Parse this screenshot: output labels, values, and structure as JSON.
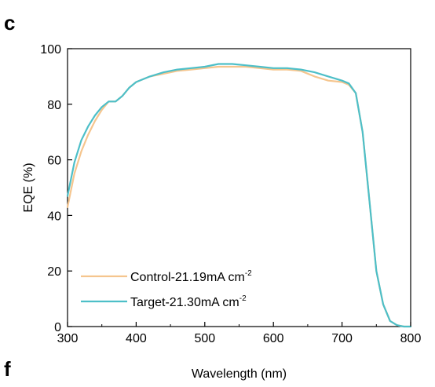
{
  "panel_labels": {
    "top": "c",
    "bottom": "f"
  },
  "colors": {
    "control": "#F5C58E",
    "target": "#4DBFC8",
    "axis": "#000000"
  },
  "chart_data": {
    "type": "line",
    "xlabel": "Wavelength (nm)",
    "ylabel": "EQE (%)",
    "xlim": [
      300,
      800
    ],
    "ylim": [
      0,
      100
    ],
    "xticks": [
      "300",
      "400",
      "500",
      "600",
      "700",
      "800"
    ],
    "yticks": [
      "0",
      "20",
      "40",
      "60",
      "80",
      "100"
    ],
    "legend_position": "bottom-left",
    "grid": false,
    "series": [
      {
        "name": "Control-21.19mA cm",
        "name_sup": "-2",
        "color": "#F5C58E",
        "x": [
          300,
          310,
          320,
          330,
          340,
          350,
          360,
          370,
          380,
          390,
          400,
          420,
          440,
          460,
          480,
          500,
          520,
          540,
          560,
          580,
          600,
          620,
          640,
          660,
          680,
          700,
          710,
          720,
          730,
          740,
          750,
          760,
          770,
          780,
          790,
          800
        ],
        "y": [
          43,
          55,
          63,
          69,
          74,
          78,
          81,
          81,
          83,
          86,
          88,
          90,
          91,
          92,
          92.5,
          93,
          93.5,
          93.5,
          93.5,
          93,
          92.5,
          92.5,
          92,
          90,
          88.5,
          88,
          87,
          84,
          70,
          45,
          20,
          8,
          2,
          0.5,
          0,
          0
        ]
      },
      {
        "name": "Target-21.30mA cm",
        "name_sup": "-2",
        "color": "#4DBFC8",
        "x": [
          300,
          310,
          320,
          330,
          340,
          350,
          360,
          370,
          380,
          390,
          400,
          420,
          440,
          460,
          480,
          500,
          520,
          540,
          560,
          580,
          600,
          620,
          640,
          660,
          680,
          700,
          710,
          720,
          730,
          740,
          750,
          760,
          770,
          780,
          790,
          800
        ],
        "y": [
          47,
          59,
          67,
          72,
          76,
          79,
          81,
          81,
          83,
          86,
          88,
          90,
          91.5,
          92.5,
          93,
          93.5,
          94.5,
          94.5,
          94,
          93.5,
          93,
          93,
          92.5,
          91.5,
          90,
          88.5,
          87.5,
          84,
          70,
          45,
          20,
          8,
          2,
          0.5,
          0,
          0
        ]
      }
    ]
  }
}
